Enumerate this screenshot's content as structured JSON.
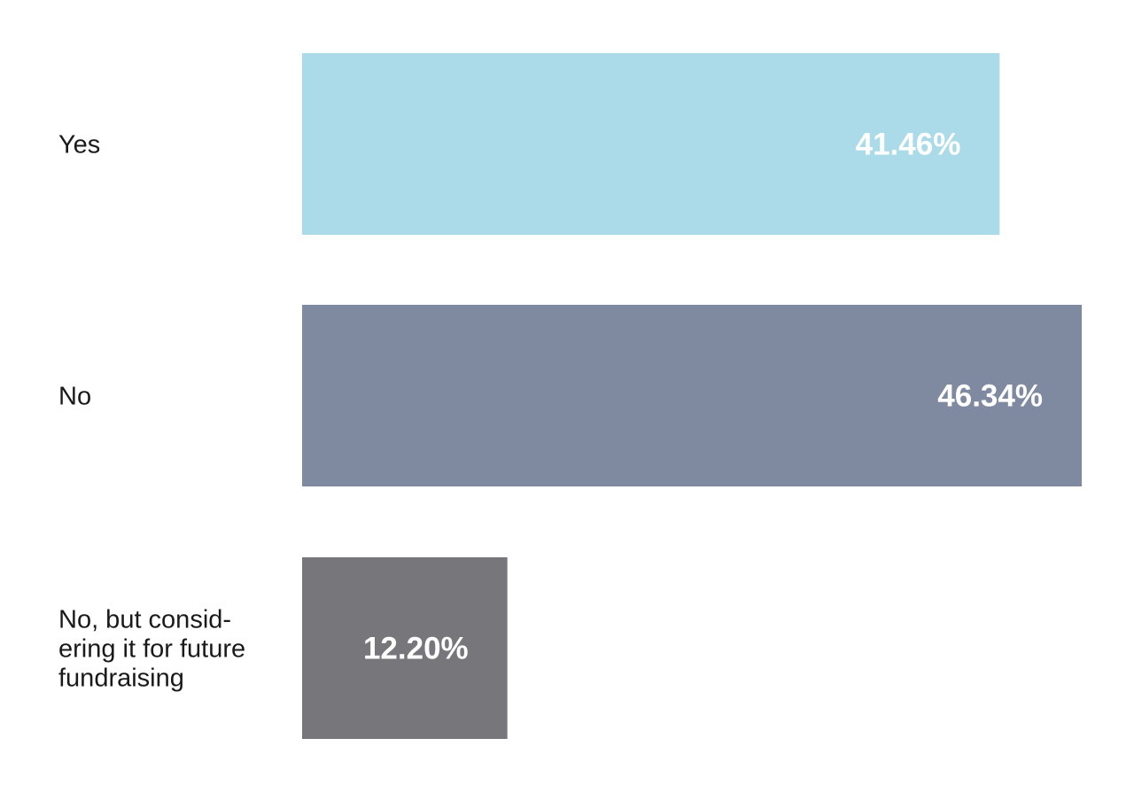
{
  "chart_data": {
    "type": "bar",
    "orientation": "horizontal",
    "title": "",
    "xlabel": "",
    "ylabel": "",
    "grid": false,
    "legend": "none",
    "categories": [
      {
        "label_lines": [
          "Yes"
        ]
      },
      {
        "label_lines": [
          "No"
        ]
      },
      {
        "label_lines": [
          "No, but consid-",
          "ering it for future",
          "fundraising"
        ]
      }
    ],
    "values": [
      41.46,
      46.34,
      12.2
    ],
    "value_labels": [
      "41.46%",
      "46.34%",
      "12.20%"
    ],
    "colors": [
      "#abdbe8",
      "#7f8aa0",
      "#77777b"
    ],
    "xlim": [
      0,
      46.34
    ]
  }
}
